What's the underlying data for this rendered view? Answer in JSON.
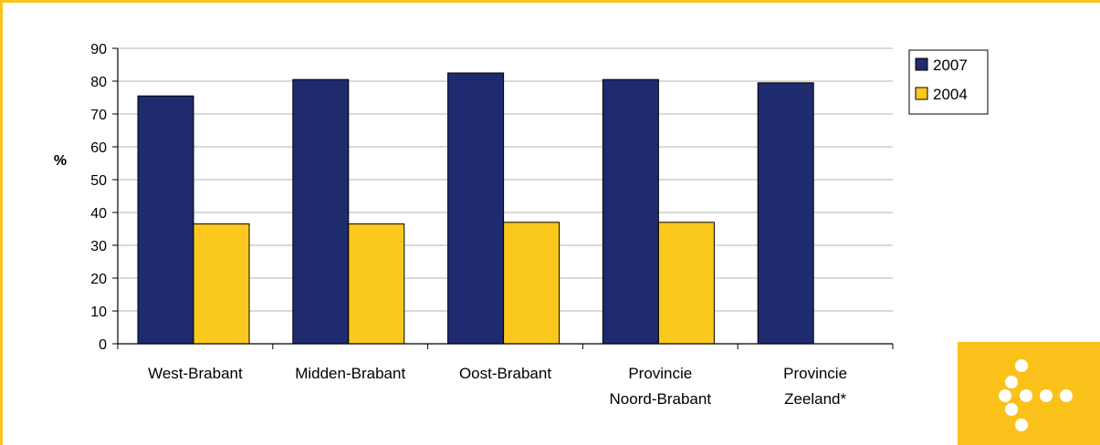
{
  "chart_data": {
    "type": "bar",
    "categories": [
      [
        "West-Brabant"
      ],
      [
        "Midden-Brabant"
      ],
      [
        "Oost-Brabant"
      ],
      [
        "Provincie",
        "Noord-Brabant"
      ],
      [
        "Provincie",
        "Zeeland*"
      ]
    ],
    "series": [
      {
        "name": "2007",
        "values": [
          75.5,
          80.5,
          82.5,
          80.5,
          79.5
        ],
        "color": "#1e2b6e"
      },
      {
        "name": "2004",
        "values": [
          36.5,
          36.5,
          37,
          37,
          null
        ],
        "color": "#fbc81e"
      }
    ],
    "ylabel": "%",
    "ylim": [
      0,
      90
    ],
    "yticks": [
      0,
      10,
      20,
      30,
      40,
      50,
      60,
      70,
      80,
      90
    ],
    "grid": true,
    "legend_position": "top-right"
  },
  "colors": {
    "frame": "#f7c51b",
    "logo_background": "#fbc11b",
    "logo_dots": "#ffffff",
    "gridline": "#b3b3b3"
  },
  "logo": {
    "icon": "arrow-dots-icon"
  }
}
